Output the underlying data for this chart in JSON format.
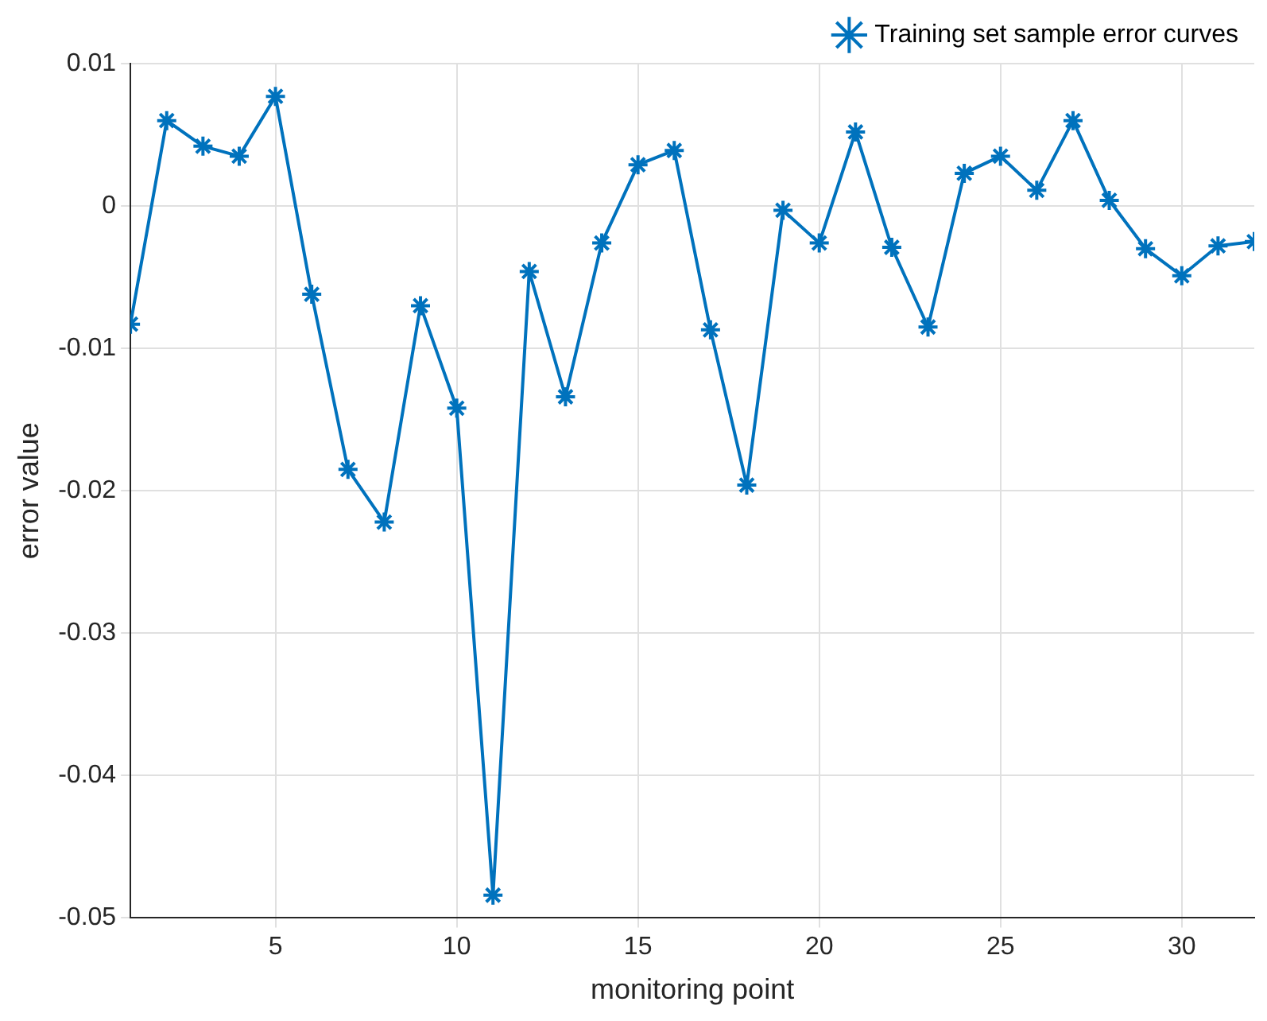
{
  "chart_data": {
    "type": "line",
    "xlabel": "monitoring point",
    "ylabel": "error value",
    "x": [
      1,
      2,
      3,
      4,
      5,
      6,
      7,
      8,
      9,
      10,
      11,
      12,
      13,
      14,
      15,
      16,
      17,
      18,
      19,
      20,
      21,
      22,
      23,
      24,
      25,
      26,
      27,
      28,
      29,
      30,
      31,
      32
    ],
    "series": [
      {
        "name": "Training set sample error curves",
        "color": "#0072bd",
        "values": [
          -0.0083,
          0.006,
          0.0042,
          0.0035,
          0.0077,
          -0.0062,
          -0.0185,
          -0.0222,
          -0.007,
          -0.0142,
          -0.0484,
          -0.0046,
          -0.0134,
          -0.0026,
          0.0029,
          0.0039,
          -0.0087,
          -0.0196,
          -0.0003,
          -0.0026,
          0.0052,
          -0.0029,
          -0.0085,
          0.0023,
          0.0035,
          0.0011,
          0.006,
          0.0004,
          -0.003,
          -0.0049,
          -0.0028,
          -0.0025
        ]
      }
    ],
    "xlim": [
      1,
      32
    ],
    "xticks": [
      5,
      10,
      15,
      20,
      25,
      30
    ],
    "ylim": [
      -0.05,
      0.01
    ],
    "yticks": [
      -0.05,
      -0.04,
      -0.03,
      -0.02,
      -0.01,
      0,
      0.01
    ],
    "grid": true,
    "legend": "top right",
    "marker": "cross",
    "line_style": "solid"
  }
}
